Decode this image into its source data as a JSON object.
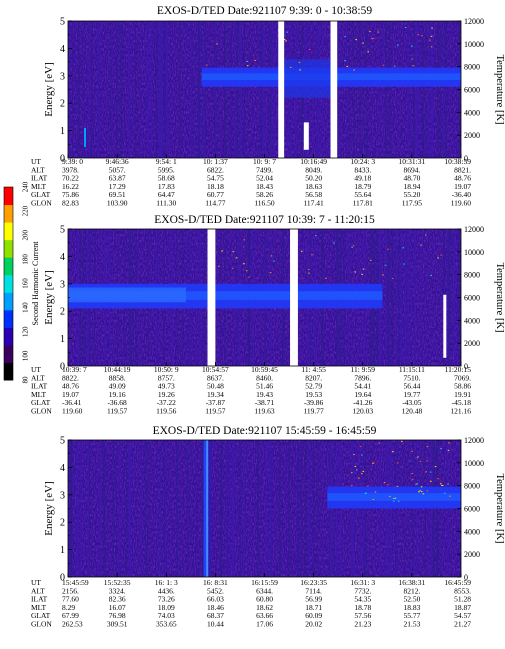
{
  "colorbar": {
    "label": "Second Harmonic Current",
    "ticks": [
      80,
      100,
      120,
      140,
      160,
      180,
      200,
      220,
      240
    ],
    "colors": [
      "#000000",
      "#3a0060",
      "#2a00b0",
      "#0030ff",
      "#00a0ff",
      "#00e0e0",
      "#00d060",
      "#90e000",
      "#ffff00",
      "#ffa000",
      "#ff0000"
    ]
  },
  "chart_data": [
    {
      "type": "heatmap",
      "title": "EXOS-D/TED   Date:921107  9:39: 0 - 10:38:59",
      "ylabel": "Energy [eV]",
      "ylabel_right": "Temperature [K]",
      "yticks": [
        0,
        1,
        2,
        3,
        4,
        5
      ],
      "yticks_right": [
        0,
        2000,
        4000,
        6000,
        8000,
        10000,
        12000
      ],
      "ylim": [
        0,
        5
      ],
      "ylim_right": [
        0,
        12000
      ],
      "xticks": [
        "9:39: 0",
        "9:46:36",
        "9:54: 1",
        "10: 1:37",
        "10: 9: 7",
        "10:16:49",
        "10:24: 3",
        "10:31:31",
        "10:38:59"
      ],
      "gaps_fraction": [
        [
          0.535,
          0.55
        ],
        [
          0.668,
          0.685
        ]
      ],
      "band_energy_eV": [
        2.6,
        3.3
      ],
      "table": {
        "rows": [
          {
            "name": "UT",
            "values": [
              "9:39: 0",
              "9:46:36",
              "9:54: 1",
              "10: 1:37",
              "10: 9: 7",
              "10:16:49",
              "10:24: 3",
              "10:31:31",
              "10:38:59"
            ]
          },
          {
            "name": "ALT",
            "values": [
              "3978.",
              "5057.",
              "5995.",
              "6822.",
              "7499.",
              "8049.",
              "8433.",
              "8694.",
              "8821."
            ]
          },
          {
            "name": "ILAT",
            "values": [
              "70.22",
              "63.87",
              "58.68",
              "54.75",
              "52.04",
              "50.20",
              "49.18",
              "48.70",
              "48.76"
            ]
          },
          {
            "name": "MLT",
            "values": [
              "16.22",
              "17.29",
              "17.83",
              "18.18",
              "18.43",
              "18.63",
              "18.79",
              "18.94",
              "19.07"
            ]
          },
          {
            "name": "GLAT",
            "values": [
              "75.86",
              "69.51",
              "64.47",
              "60.77",
              "58.26",
              "56.58",
              "55.64",
              "55.20",
              "-36.40"
            ]
          },
          {
            "name": "GLON",
            "values": [
              "82.83",
              "103.90",
              "111.30",
              "114.77",
              "116.50",
              "117.41",
              "117.81",
              "117.95",
              "119.60"
            ]
          }
        ]
      }
    },
    {
      "type": "heatmap",
      "title": "EXOS-D/TED   Date:921107  10:39: 7 - 11:20:15",
      "ylabel": "Energy [eV]",
      "ylabel_right": "Temperature [K]",
      "yticks": [
        0,
        1,
        2,
        3,
        4,
        5
      ],
      "yticks_right": [
        0,
        2000,
        4000,
        6000,
        8000,
        10000,
        12000
      ],
      "ylim": [
        0,
        5
      ],
      "ylim_right": [
        0,
        12000
      ],
      "xticks": [
        "10:39: 7",
        "10:44:19",
        "10:50: 9",
        "10:54:57",
        "10:59:45",
        "11: 4:55",
        "11: 9:59",
        "11:15:11",
        "11:20:15"
      ],
      "gaps_fraction": [
        [
          0.355,
          0.375
        ],
        [
          0.565,
          0.585
        ]
      ],
      "band_energy_eV": [
        2.1,
        3.0
      ],
      "table": {
        "rows": [
          {
            "name": "UT",
            "values": [
              "10:39: 7",
              "10:44:19",
              "10:50: 9",
              "10:54:57",
              "10:59:45",
              "11: 4:55",
              "11: 9:59",
              "11:15:11",
              "11:20:15"
            ]
          },
          {
            "name": "ALT",
            "values": [
              "8822.",
              "8858.",
              "8757.",
              "8637.",
              "8460.",
              "8207.",
              "7896.",
              "7510.",
              "7069."
            ]
          },
          {
            "name": "ILAT",
            "values": [
              "48.76",
              "49.09",
              "49.73",
              "50.48",
              "51.46",
              "52.79",
              "54.41",
              "56.44",
              "58.86"
            ]
          },
          {
            "name": "MLT",
            "values": [
              "19.07",
              "19.16",
              "19.26",
              "19.34",
              "19.43",
              "19.53",
              "19.64",
              "19.77",
              "19.91"
            ]
          },
          {
            "name": "GLAT",
            "values": [
              "-36.41",
              "-36.68",
              "-37.22",
              "-37.87",
              "-38.71",
              "-39.86",
              "-41.26",
              "-43.05",
              "-45.18"
            ]
          },
          {
            "name": "GLON",
            "values": [
              "119.60",
              "119.57",
              "119.56",
              "119.57",
              "119.63",
              "119.77",
              "120.03",
              "120.48",
              "121.16"
            ]
          }
        ]
      }
    },
    {
      "type": "heatmap",
      "title": "EXOS-D/TED   Date:921107  15:45:59 - 16:45:59",
      "ylabel": "Energy [eV]",
      "ylabel_right": "Temperature [K]",
      "yticks": [
        0,
        1,
        2,
        3,
        4,
        5
      ],
      "yticks_right": [
        0,
        2000,
        4000,
        6000,
        8000,
        10000,
        12000
      ],
      "ylim": [
        0,
        5
      ],
      "ylim_right": [
        0,
        12000
      ],
      "xticks": [
        "15:45:59",
        "15:52:35",
        "16: 1: 3",
        "16: 8:31",
        "16:15:59",
        "16:23:35",
        "16:31: 3",
        "16:38:31",
        "16:45:59"
      ],
      "gaps_fraction": [],
      "band_energy_eV": [
        2.5,
        3.3
      ],
      "table": {
        "rows": [
          {
            "name": "UT",
            "values": [
              "15:45:59",
              "15:52:35",
              "16: 1: 3",
              "16: 8:31",
              "16:15:59",
              "16:23:35",
              "16:31: 3",
              "16:38:31",
              "16:45:59"
            ]
          },
          {
            "name": "ALT",
            "values": [
              "2156.",
              "3324.",
              "4436.",
              "5452.",
              "6344.",
              "7114.",
              "7732.",
              "8212.",
              "8553."
            ]
          },
          {
            "name": "ILAT",
            "values": [
              "77.60",
              "82.36",
              "73.26",
              "66.03",
              "60.80",
              "56.99",
              "54.35",
              "52.50",
              "51.28"
            ]
          },
          {
            "name": "MLT",
            "values": [
              "8.29",
              "16.07",
              "18.09",
              "18.46",
              "18.62",
              "18.71",
              "18.78",
              "18.83",
              "18.87"
            ]
          },
          {
            "name": "GLAT",
            "values": [
              "67.99",
              "76.98",
              "74.03",
              "68.37",
              "63.66",
              "60.09",
              "57.56",
              "55.77",
              "54.57"
            ]
          },
          {
            "name": "GLON",
            "values": [
              "262.53",
              "309.51",
              "353.65",
              "10.44",
              "17.06",
              "20.02",
              "21.23",
              "21.53",
              "21.27"
            ]
          }
        ]
      }
    }
  ]
}
